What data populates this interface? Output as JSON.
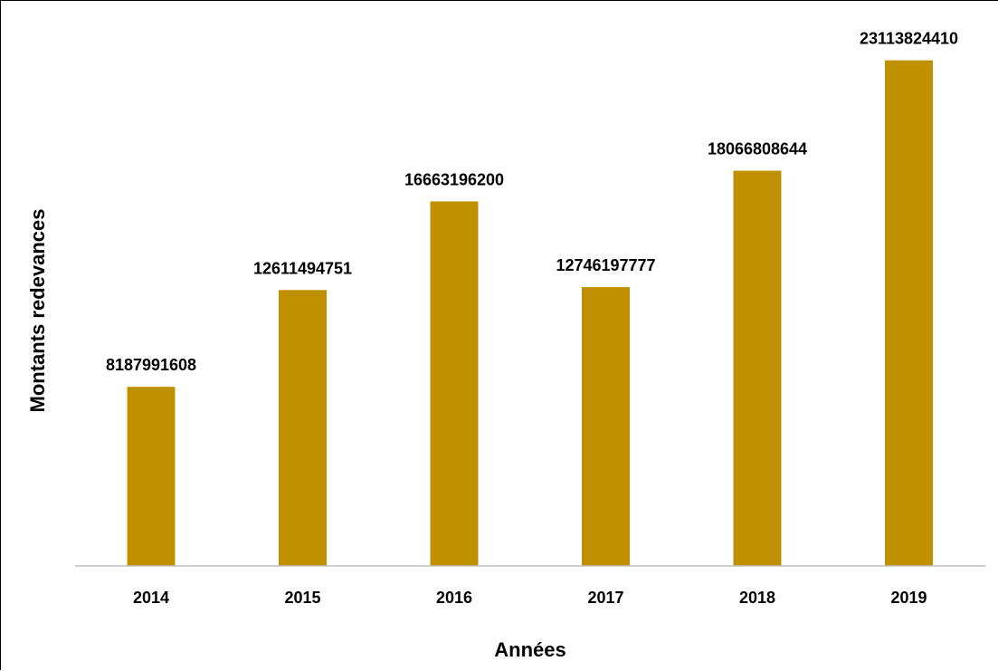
{
  "chart_data": {
    "type": "bar",
    "title": "",
    "xlabel": "Années",
    "ylabel": "Montants redevances",
    "categories": [
      "2014",
      "2015",
      "2016",
      "2017",
      "2018",
      "2019"
    ],
    "values": [
      8187991608,
      12611494751,
      16663196200,
      12746197777,
      18066808644,
      23113824410
    ],
    "data_labels": [
      "8187991608",
      "12611494751",
      "16663196200",
      "12746197777",
      "18066808644",
      "23113824410"
    ],
    "ylim": [
      0,
      25000000000
    ],
    "grid": false,
    "legend": "none",
    "bar_color": "#BF9000",
    "axis_color": "#BFBFBF"
  }
}
